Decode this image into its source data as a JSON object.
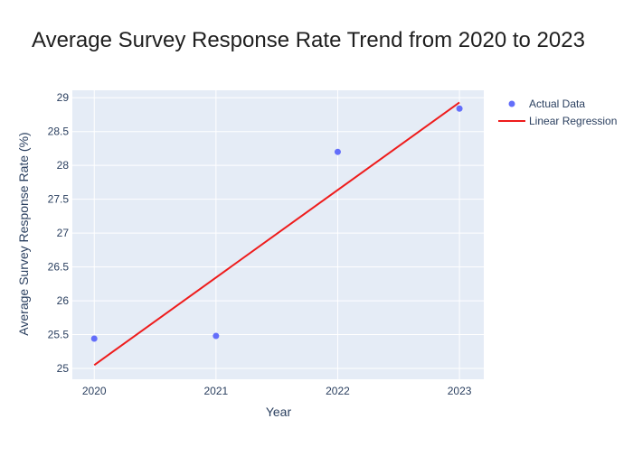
{
  "colors": {
    "plot_bg": "#e5ecf6",
    "grid": "#ffffff",
    "point": "#636efa",
    "line": "#ee1c1c"
  },
  "chart_data": {
    "type": "scatter",
    "title": "Average Survey Response Rate Trend from 2020 to 2023",
    "xlabel": "Year",
    "ylabel": "Average Survey Response Rate (%)",
    "x_ticks": [
      "2020",
      "2021",
      "2022",
      "2023"
    ],
    "y_ticks": [
      "25",
      "25.5",
      "26",
      "26.5",
      "27",
      "27.5",
      "28",
      "28.5",
      "29"
    ],
    "xlim": [
      2019.82,
      2023.2
    ],
    "ylim": [
      24.84,
      29.11
    ],
    "grid": true,
    "legend_position": "top-right",
    "series": [
      {
        "name": "Actual Data",
        "kind": "markers",
        "x": [
          2020,
          2021,
          2022,
          2023
        ],
        "y": [
          25.44,
          25.48,
          28.2,
          28.84
        ]
      },
      {
        "name": "Linear Regression",
        "kind": "line",
        "x": [
          2020,
          2023
        ],
        "y": [
          25.05,
          28.93
        ]
      }
    ]
  }
}
